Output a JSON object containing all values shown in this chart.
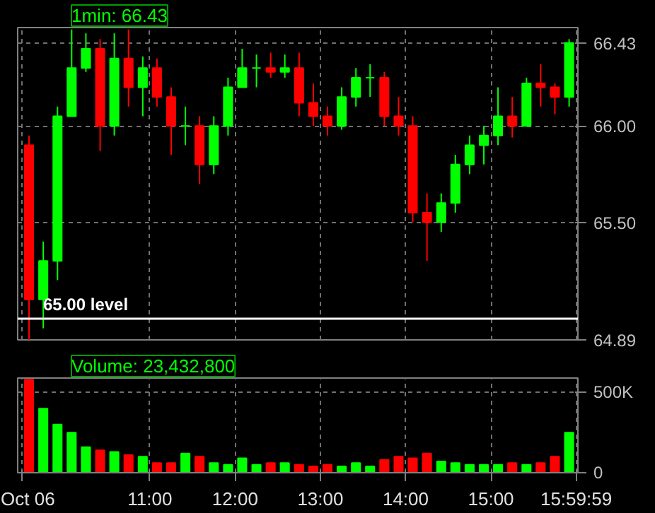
{
  "chart_data": [
    {
      "type": "candlestick",
      "title": "1min: 66.43",
      "x": [
        9.583,
        9.75,
        9.917,
        10.083,
        10.25,
        10.417,
        10.583,
        10.75,
        10.917,
        11.083,
        11.25,
        11.417,
        11.583,
        11.75,
        11.917,
        12.083,
        12.25,
        12.417,
        12.583,
        12.75,
        12.917,
        13.083,
        13.25,
        13.417,
        13.583,
        13.75,
        13.917,
        14.083,
        14.25,
        14.417,
        14.583,
        14.75,
        14.917,
        15.083,
        15.25,
        15.417,
        15.583,
        15.75,
        15.917
      ],
      "ohlc": [
        [
          65.9,
          65.95,
          64.88,
          65.1
        ],
        [
          65.1,
          65.4,
          64.95,
          65.3
        ],
        [
          65.3,
          66.1,
          65.2,
          66.05
        ],
        [
          66.05,
          66.5,
          66.05,
          66.3
        ],
        [
          66.3,
          66.48,
          66.28,
          66.4
        ],
        [
          66.4,
          66.45,
          65.87,
          66.0
        ],
        [
          66.0,
          66.48,
          65.95,
          66.35
        ],
        [
          66.35,
          66.5,
          66.1,
          66.2
        ],
        [
          66.2,
          66.36,
          66.05,
          66.3
        ],
        [
          66.3,
          66.35,
          66.1,
          66.15
        ],
        [
          66.15,
          66.2,
          65.85,
          66.0
        ],
        [
          66.0,
          66.1,
          65.9,
          66.0
        ],
        [
          66.0,
          66.05,
          65.7,
          65.8
        ],
        [
          65.8,
          66.05,
          65.75,
          66.0
        ],
        [
          66.0,
          66.25,
          65.95,
          66.2
        ],
        [
          66.2,
          66.4,
          66.2,
          66.3
        ],
        [
          66.3,
          66.37,
          66.2,
          66.3
        ],
        [
          66.3,
          66.38,
          66.25,
          66.28
        ],
        [
          66.28,
          66.37,
          66.25,
          66.3
        ],
        [
          66.3,
          66.38,
          66.05,
          66.12
        ],
        [
          66.12,
          66.22,
          66.0,
          66.05
        ],
        [
          66.05,
          66.1,
          65.95,
          66.0
        ],
        [
          66.0,
          66.2,
          65.98,
          66.15
        ],
        [
          66.15,
          66.3,
          66.1,
          66.25
        ],
        [
          66.25,
          66.32,
          66.15,
          66.25
        ],
        [
          66.25,
          66.28,
          66.0,
          66.05
        ],
        [
          66.05,
          66.15,
          65.95,
          66.0
        ],
        [
          66.0,
          66.05,
          65.5,
          65.55
        ],
        [
          65.55,
          65.65,
          65.3,
          65.5
        ],
        [
          65.5,
          65.65,
          65.45,
          65.6
        ],
        [
          65.6,
          65.85,
          65.55,
          65.8
        ],
        [
          65.8,
          65.95,
          65.75,
          65.9
        ],
        [
          65.9,
          66.0,
          65.8,
          65.95
        ],
        [
          65.95,
          66.2,
          65.9,
          66.05
        ],
        [
          66.05,
          66.15,
          65.94,
          66.0
        ],
        [
          66.0,
          66.25,
          66.0,
          66.22
        ],
        [
          66.22,
          66.32,
          66.1,
          66.2
        ],
        [
          66.2,
          66.22,
          66.06,
          66.15
        ],
        [
          66.15,
          66.45,
          66.1,
          66.43
        ]
      ],
      "colors": [
        "#ff0000",
        "#00ff00",
        "#00ff00",
        "#00ff00",
        "#00ff00",
        "#ff0000",
        "#00ff00",
        "#ff0000",
        "#00ff00",
        "#ff0000",
        "#ff0000",
        "#00ff00",
        "#ff0000",
        "#00ff00",
        "#00ff00",
        "#00ff00",
        "#00ff00",
        "#ff0000",
        "#00ff00",
        "#ff0000",
        "#ff0000",
        "#ff0000",
        "#00ff00",
        "#00ff00",
        "#00ff00",
        "#ff0000",
        "#ff0000",
        "#ff0000",
        "#ff0000",
        "#00ff00",
        "#00ff00",
        "#00ff00",
        "#00ff00",
        "#00ff00",
        "#ff0000",
        "#00ff00",
        "#ff0000",
        "#ff0000",
        "#00ff00"
      ],
      "xlim": [
        9.45,
        16.02
      ],
      "xticks": [
        {
          "value": 9.5,
          "label": null
        },
        {
          "value": 11,
          "label": null
        },
        {
          "value": 12,
          "label": null
        },
        {
          "value": 13,
          "label": null
        },
        {
          "value": 14,
          "label": null
        },
        {
          "value": 15,
          "label": null
        },
        {
          "value": 15.99972,
          "label": null
        }
      ],
      "ylim": [
        64.89,
        66.51
      ],
      "yticks": [
        64.89,
        {
          "value": 65.5,
          "label": "65.50"
        },
        {
          "value": 66.0,
          "label": "66.00"
        },
        66.43
      ],
      "ref_lines": [
        {
          "axis": "y",
          "value": 65.0,
          "label": "65.00 level",
          "color": "#ffffff"
        }
      ],
      "grid": true,
      "tick_labels": "y"
    },
    {
      "type": "bar",
      "title": "Volume: 23,432,800",
      "x": [
        9.583,
        9.75,
        9.917,
        10.083,
        10.25,
        10.417,
        10.583,
        10.75,
        10.917,
        11.083,
        11.25,
        11.417,
        11.583,
        11.75,
        11.917,
        12.083,
        12.25,
        12.417,
        12.583,
        12.75,
        12.917,
        13.083,
        13.25,
        13.417,
        13.583,
        13.75,
        13.917,
        14.083,
        14.25,
        14.417,
        14.583,
        14.75,
        14.917,
        15.083,
        15.25,
        15.417,
        15.583,
        15.75,
        15.917
      ],
      "values": [
        580000,
        400000,
        300000,
        250000,
        160000,
        140000,
        130000,
        110000,
        100000,
        60000,
        60000,
        120000,
        100000,
        60000,
        50000,
        90000,
        50000,
        60000,
        60000,
        50000,
        40000,
        50000,
        40000,
        60000,
        40000,
        80000,
        100000,
        90000,
        120000,
        70000,
        60000,
        50000,
        50000,
        50000,
        60000,
        50000,
        60000,
        100000,
        250000
      ],
      "colors": [
        "#ff0000",
        "#00ff00",
        "#00ff00",
        "#00ff00",
        "#00ff00",
        "#ff0000",
        "#00ff00",
        "#ff0000",
        "#00ff00",
        "#ff0000",
        "#ff0000",
        "#00ff00",
        "#ff0000",
        "#00ff00",
        "#00ff00",
        "#00ff00",
        "#00ff00",
        "#ff0000",
        "#00ff00",
        "#ff0000",
        "#ff0000",
        "#ff0000",
        "#00ff00",
        "#00ff00",
        "#00ff00",
        "#ff0000",
        "#ff0000",
        "#ff0000",
        "#ff0000",
        "#00ff00",
        "#00ff00",
        "#00ff00",
        "#00ff00",
        "#00ff00",
        "#ff0000",
        "#00ff00",
        "#ff0000",
        "#ff0000",
        "#00ff00"
      ],
      "xlim": [
        9.45,
        16.02
      ],
      "xticks": [
        {
          "value": 9.5,
          "label": "Oct 06"
        },
        {
          "value": 11,
          "label": "11:00"
        },
        {
          "value": 12,
          "label": "12:00"
        },
        {
          "value": 13,
          "label": "13:00"
        },
        {
          "value": 14,
          "label": "14:00"
        },
        {
          "value": 15,
          "label": "15:00"
        },
        {
          "value": 15.99972,
          "label": "15:59:59"
        }
      ],
      "ylim": [
        0,
        590000
      ],
      "yticks": [
        0,
        {
          "value": 500000,
          "label": "500K"
        }
      ],
      "grid": true
    }
  ]
}
